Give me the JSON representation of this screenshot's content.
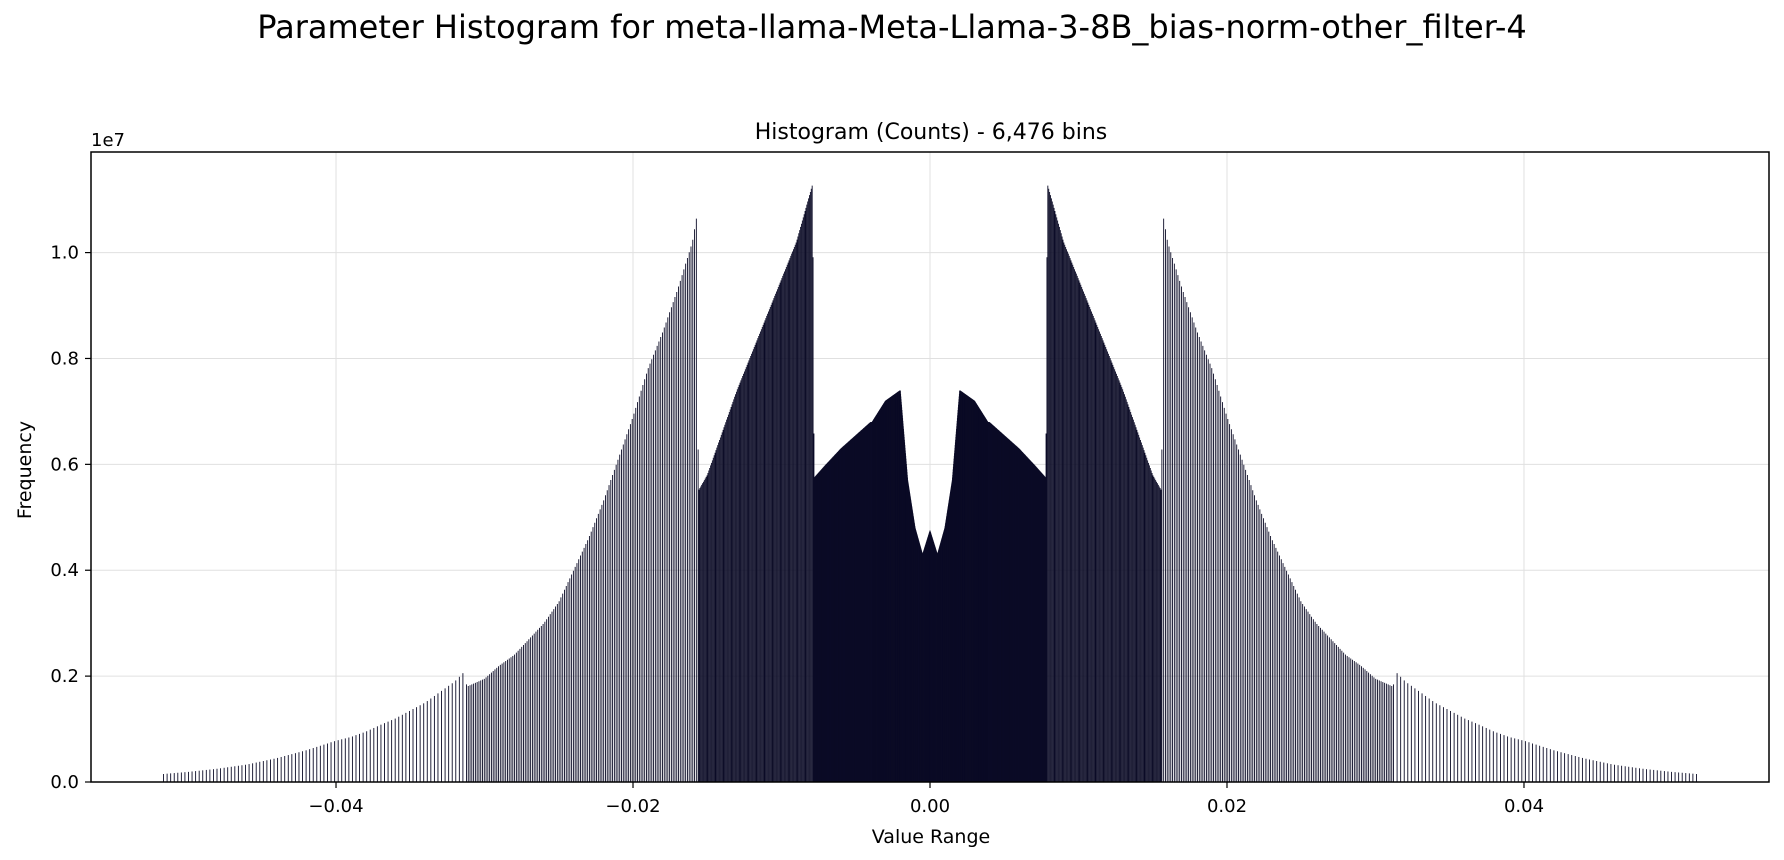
{
  "suptitle": "Parameter Histogram for meta-llama-Meta-Llama-3-8B_bias-norm-other_filter-4",
  "chart_data": {
    "type": "bar",
    "title": "Histogram (Counts) - 6,476 bins",
    "xlabel": "Value Range",
    "ylabel": "Frequency",
    "y_offset_label": "1e7",
    "xlim": [
      -0.0565,
      0.0565
    ],
    "ylim": [
      0,
      11900000.0
    ],
    "x_ticks": [
      -0.04,
      -0.02,
      0.0,
      0.02,
      0.04
    ],
    "x_tick_labels": [
      "−0.04",
      "−0.02",
      "0.00",
      "0.02",
      "0.04"
    ],
    "y_ticks": [
      0,
      2000000,
      4000000,
      6000000,
      8000000,
      10000000
    ],
    "y_tick_labels": [
      "0.0",
      "0.2",
      "0.4",
      "0.6",
      "0.8",
      "1.0"
    ],
    "grid": true,
    "bar_color": "#0b0b26",
    "bin_count": 6476,
    "envelope": {
      "x": [
        0.0,
        0.0005,
        0.001,
        0.0015,
        0.002,
        0.003,
        0.0039,
        0.004,
        0.005,
        0.006,
        0.007,
        0.0078,
        0.0079,
        0.009,
        0.01,
        0.011,
        0.012,
        0.013,
        0.014,
        0.015,
        0.0156,
        0.0157,
        0.016,
        0.017,
        0.018,
        0.019,
        0.02,
        0.021,
        0.022,
        0.023,
        0.024,
        0.025,
        0.026,
        0.027,
        0.028,
        0.029,
        0.03,
        0.0312,
        0.0313,
        0.032,
        0.033,
        0.034,
        0.035,
        0.036,
        0.037,
        0.038,
        0.039,
        0.04,
        0.042,
        0.044,
        0.046,
        0.048,
        0.05,
        0.0517
      ],
      "counts": [
        4750000,
        4300000,
        4800000,
        5700000,
        7400000,
        7200000,
        6800000,
        6800000,
        6550000,
        6300000,
        6000000,
        5750000,
        11300000,
        10200000,
        9500000,
        8800000,
        8100000,
        7400000,
        6600000,
        5800000,
        5500000,
        10700000,
        10200000,
        9300000,
        8500000,
        7800000,
        6900000,
        6100000,
        5300000,
        4600000,
        4000000,
        3400000,
        3000000,
        2700000,
        2400000,
        2200000,
        1950000,
        1800000,
        2100000,
        1900000,
        1700000,
        1500000,
        1350000,
        1200000,
        1080000,
        950000,
        850000,
        780000,
        600000,
        450000,
        330000,
        250000,
        190000,
        150000
      ]
    }
  }
}
